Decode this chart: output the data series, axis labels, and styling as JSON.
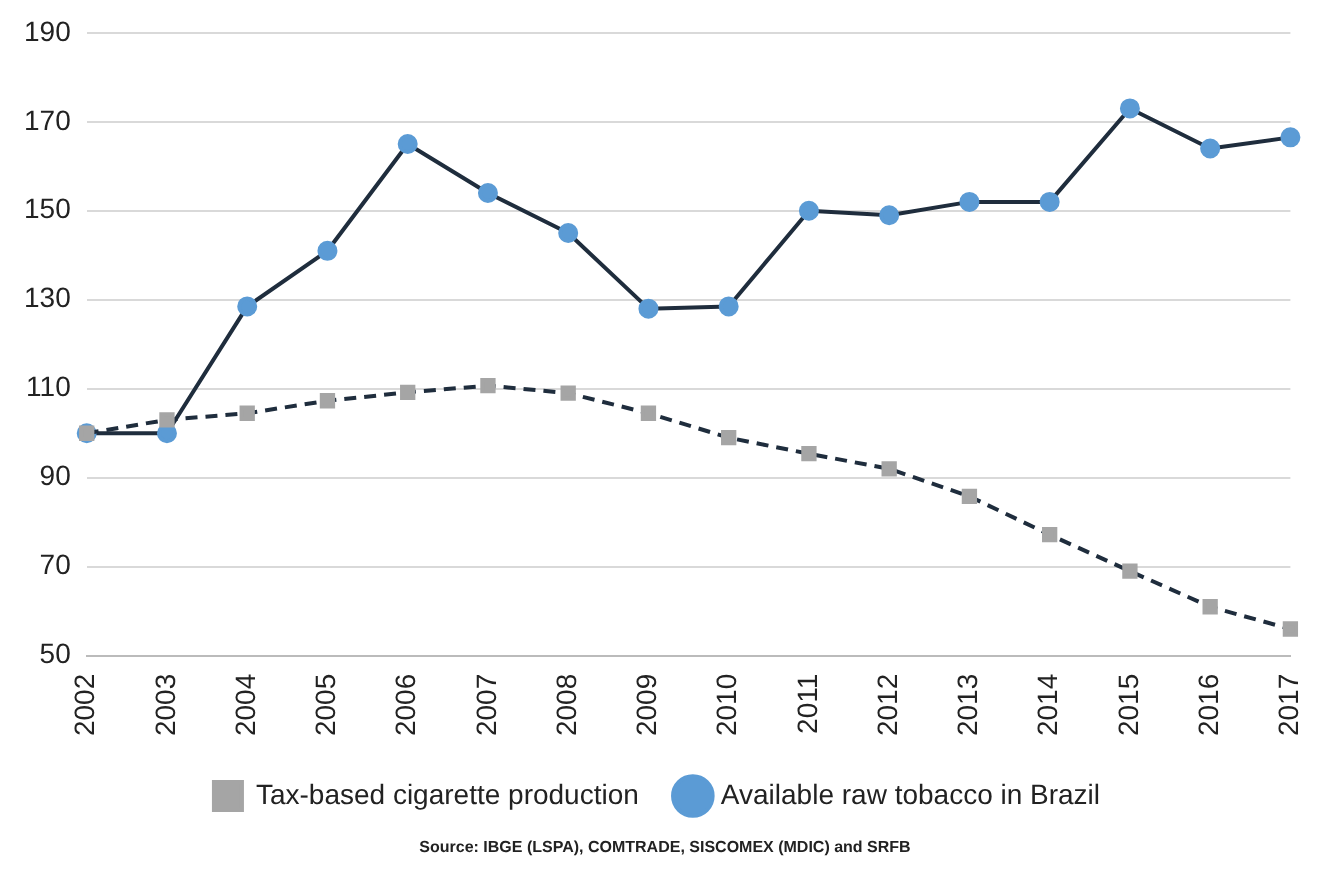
{
  "chart_data": {
    "type": "line",
    "categories": [
      "2002",
      "2003",
      "2004",
      "2005",
      "2006",
      "2007",
      "2008",
      "2009",
      "2010",
      "2011",
      "2012",
      "2013",
      "2014",
      "2015",
      "2016",
      "2017"
    ],
    "series": [
      {
        "name": "Available raw tobacco in Brazil",
        "color": "#5b9bd5",
        "marker": "circle",
        "line_style": "solid",
        "values": [
          100,
          100,
          128.5,
          141,
          165,
          154,
          145,
          128,
          128.5,
          150,
          149,
          152,
          152,
          173,
          164,
          166.5
        ]
      },
      {
        "name": "Tax-based cigarette production",
        "color": "#a5a5a5",
        "marker": "square",
        "line_style": "dashed",
        "values": [
          100,
          103,
          104.5,
          107.3,
          109.2,
          110.7,
          109,
          104.5,
          99,
          95.4,
          92,
          85.8,
          77.2,
          69,
          61,
          56
        ]
      }
    ],
    "ylim": [
      50,
      190
    ],
    "yticks": [
      50,
      70,
      90,
      110,
      130,
      150,
      170,
      190
    ],
    "grid": "y",
    "legend": "bottom",
    "annotations": [
      "Source: IBGE (LSPA), COMTRADE, SISCOMEX (MDIC) and SRFB"
    ]
  }
}
